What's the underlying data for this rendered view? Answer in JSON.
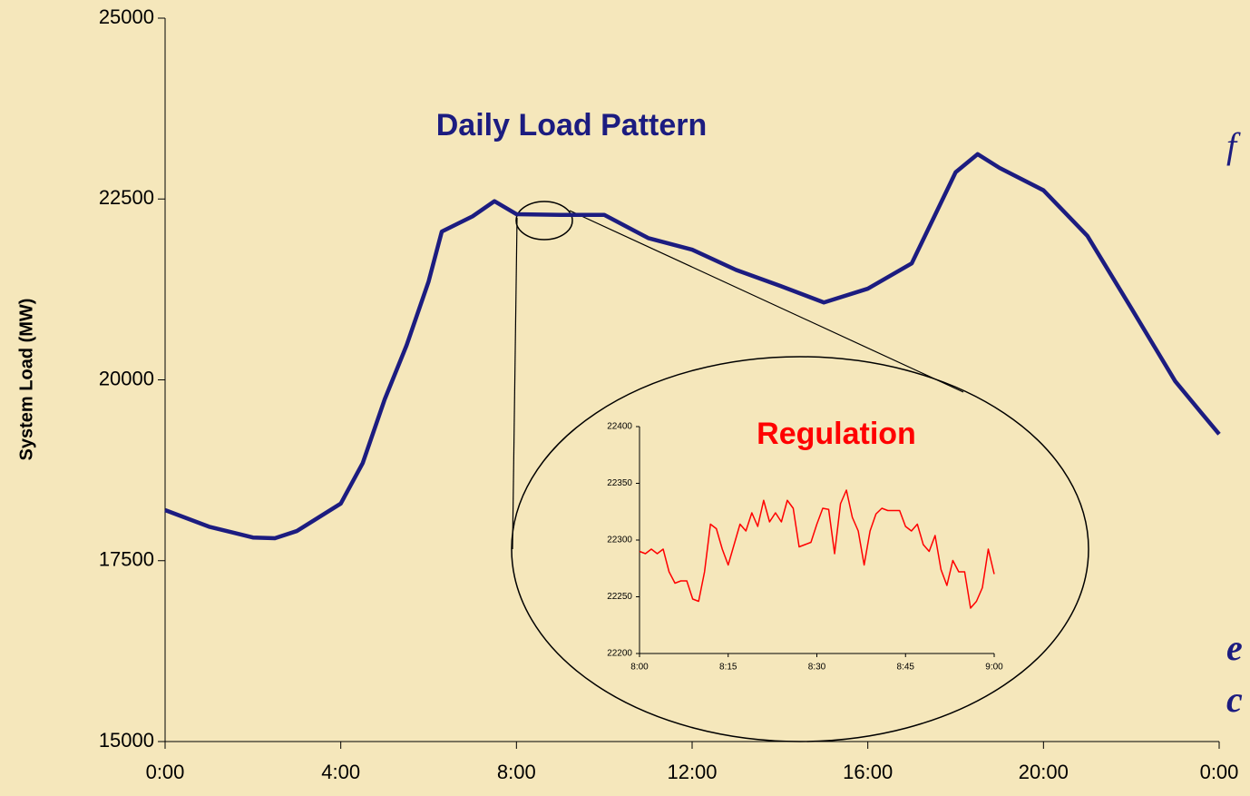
{
  "chart_data": [
    {
      "type": "line",
      "title": "Daily Load Pattern",
      "y_label": "System Load (MW)",
      "x": [
        0,
        1,
        2,
        2.5,
        3,
        4,
        4.5,
        5,
        5.5,
        6,
        6.3,
        7,
        7.5,
        8,
        9,
        10,
        11,
        12,
        13,
        14,
        15,
        16,
        17,
        17.5,
        18,
        18.5,
        19,
        20,
        21,
        22,
        23,
        23.6,
        24
      ],
      "series": [
        {
          "name": "System Load",
          "color": "#1c1c80",
          "values": [
            18200,
            17970,
            17820,
            17810,
            17910,
            18290,
            18850,
            19730,
            20480,
            21360,
            22050,
            22260,
            22470,
            22290,
            22280,
            22280,
            21960,
            21800,
            21520,
            21300,
            21070,
            21260,
            21610,
            22240,
            22870,
            23120,
            22930,
            22620,
            21990,
            20990,
            19980,
            19540,
            19250
          ]
        }
      ],
      "xlim": [
        0,
        24
      ],
      "xticks": [
        {
          "value": 0,
          "label": "0:00"
        },
        {
          "value": 4,
          "label": "4:00"
        },
        {
          "value": 8,
          "label": "8:00"
        },
        {
          "value": 12,
          "label": "12:00"
        },
        {
          "value": 16,
          "label": "16:00"
        },
        {
          "value": 20,
          "label": "20:00"
        },
        {
          "value": 24,
          "label": "0:00"
        }
      ],
      "ylim": [
        15000,
        25000
      ],
      "yticks": [
        15000,
        17500,
        20000,
        22500,
        25000
      ],
      "annotations": [
        "f",
        "e",
        "c"
      ]
    },
    {
      "type": "line",
      "title": "Regulation",
      "x": [
        0,
        1,
        2,
        3,
        4,
        5,
        6,
        7,
        8,
        9,
        10,
        11,
        12,
        13,
        14,
        15,
        16,
        17,
        18,
        19,
        20,
        21,
        22,
        23,
        24,
        25,
        26,
        27,
        28,
        29,
        30,
        31,
        32,
        33,
        34,
        35,
        36,
        37,
        38,
        39,
        40,
        41,
        42,
        43,
        44,
        45,
        46,
        47,
        48,
        49,
        50,
        51,
        52,
        53,
        54,
        55,
        56,
        57,
        58,
        59,
        60
      ],
      "series": [
        {
          "name": "Regulation",
          "color": "#ff0000",
          "values": [
            22290,
            22288,
            22292,
            22288,
            22292,
            22272,
            22262,
            22264,
            22264,
            22248,
            22246,
            22272,
            22314,
            22310,
            22292,
            22278,
            22296,
            22314,
            22308,
            22324,
            22312,
            22335,
            22316,
            22324,
            22316,
            22335,
            22328,
            22294,
            22296,
            22298,
            22314,
            22328,
            22327,
            22288,
            22332,
            22344,
            22320,
            22308,
            22278,
            22308,
            22323,
            22328,
            22326,
            22326,
            22326,
            22312,
            22308,
            22314,
            22296,
            22290,
            22304,
            22274,
            22260,
            22282,
            22272,
            22272,
            22240,
            22246,
            22258,
            22292,
            22270
          ]
        }
      ],
      "xlim": [
        0,
        60
      ],
      "xticks": [
        {
          "value": 0,
          "label": "8:00"
        },
        {
          "value": 15,
          "label": "8:15"
        },
        {
          "value": 30,
          "label": "8:30"
        },
        {
          "value": 45,
          "label": "8:45"
        },
        {
          "value": 60,
          "label": "9:00"
        }
      ],
      "ylim": [
        22200,
        22400
      ],
      "yticks": [
        22200,
        22250,
        22300,
        22350,
        22400
      ]
    }
  ]
}
